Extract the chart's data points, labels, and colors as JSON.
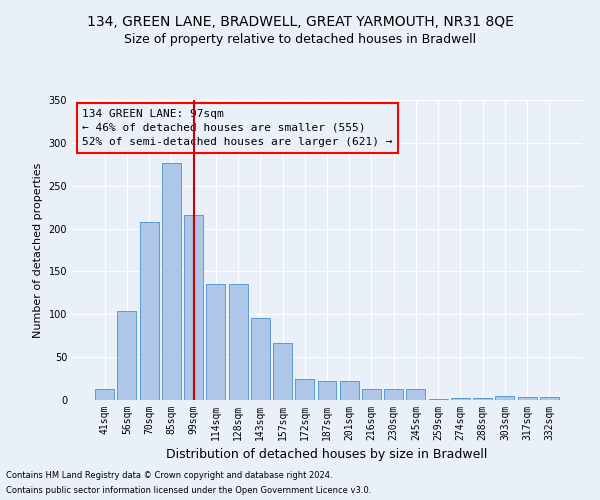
{
  "title1": "134, GREEN LANE, BRADWELL, GREAT YARMOUTH, NR31 8QE",
  "title2": "Size of property relative to detached houses in Bradwell",
  "xlabel": "Distribution of detached houses by size in Bradwell",
  "ylabel": "Number of detached properties",
  "footnote1": "Contains HM Land Registry data © Crown copyright and database right 2024.",
  "footnote2": "Contains public sector information licensed under the Open Government Licence v3.0.",
  "annotation_line1": "134 GREEN LANE: 97sqm",
  "annotation_line2": "← 46% of detached houses are smaller (555)",
  "annotation_line3": "52% of semi-detached houses are larger (621) →",
  "categories": [
    "41sqm",
    "56sqm",
    "70sqm",
    "85sqm",
    "99sqm",
    "114sqm",
    "128sqm",
    "143sqm",
    "157sqm",
    "172sqm",
    "187sqm",
    "201sqm",
    "216sqm",
    "230sqm",
    "245sqm",
    "259sqm",
    "274sqm",
    "288sqm",
    "303sqm",
    "317sqm",
    "332sqm"
  ],
  "values": [
    13,
    104,
    208,
    276,
    216,
    135,
    135,
    96,
    66,
    25,
    22,
    22,
    13,
    13,
    13,
    1,
    2,
    2,
    5,
    3,
    3
  ],
  "bar_color": "#aec6e8",
  "bar_edge_color": "#5b9bd5",
  "vline_color": "#cc0000",
  "ylim": [
    0,
    350
  ],
  "yticks": [
    0,
    50,
    100,
    150,
    200,
    250,
    300,
    350
  ],
  "bg_color": "#eaf0f8",
  "grid_color": "#ffffff",
  "title1_fontsize": 10,
  "title2_fontsize": 9,
  "annotation_fontsize": 8,
  "ylabel_fontsize": 8,
  "xlabel_fontsize": 9,
  "footnote_fontsize": 6,
  "tick_fontsize": 7
}
